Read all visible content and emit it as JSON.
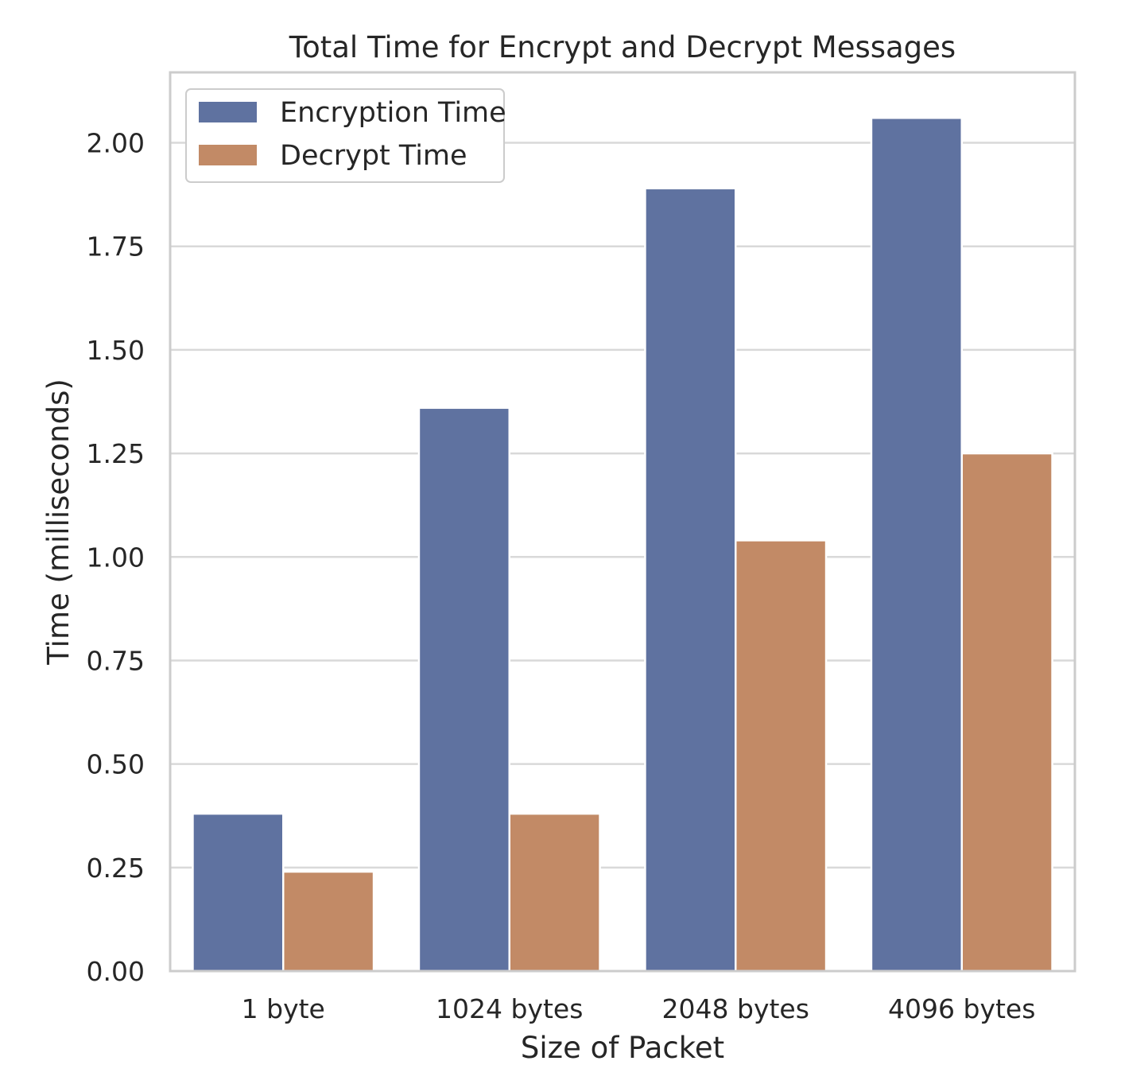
{
  "chart_data": {
    "type": "bar",
    "title": "Total Time for Encrypt and Decrypt Messages",
    "xlabel": "Size of Packet",
    "ylabel": "Time (milliseconds)",
    "categories": [
      "1 byte",
      "1024 bytes",
      "2048 bytes",
      "4096 bytes"
    ],
    "series": [
      {
        "name": "Encryption Time",
        "values": [
          0.38,
          1.36,
          1.89,
          2.06
        ],
        "color": "#5f72a0"
      },
      {
        "name": "Decrypt Time",
        "values": [
          0.24,
          0.38,
          1.04,
          1.25
        ],
        "color": "#c28a66"
      }
    ],
    "ylim": [
      0,
      2.17
    ],
    "yticks": [
      0.0,
      0.25,
      0.5,
      0.75,
      1.0,
      1.25,
      1.5,
      1.75,
      2.0
    ],
    "ytick_labels": [
      "0.00",
      "0.25",
      "0.50",
      "0.75",
      "1.00",
      "1.25",
      "1.50",
      "1.75",
      "2.00"
    ],
    "grid": true,
    "legend_position": "top-left"
  }
}
